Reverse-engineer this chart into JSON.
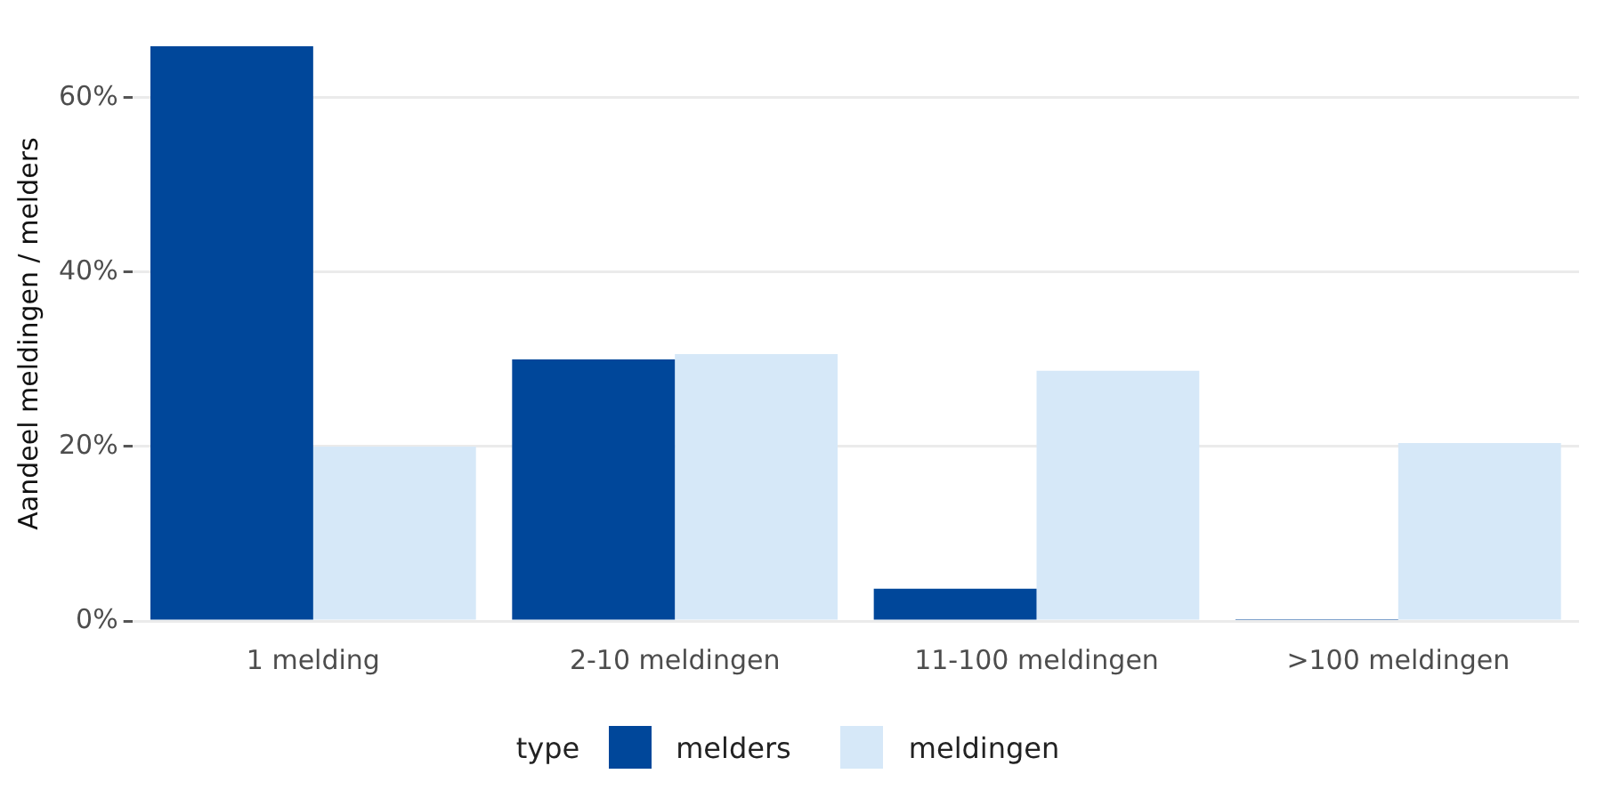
{
  "chart_data": {
    "type": "bar",
    "ylabel": "Aandeel meldingen / melders",
    "legend_title": "type",
    "categories": [
      "1 melding",
      "2-10 meldingen",
      "11-100 meldingen",
      ">100 meldingen"
    ],
    "series": [
      {
        "name": "melders",
        "color": "#00479a",
        "values": [
          65.9,
          30.0,
          3.7,
          0.2
        ]
      },
      {
        "name": "meldingen",
        "color": "#d6e8f8",
        "values": [
          20.0,
          30.6,
          28.7,
          20.4
        ]
      }
    ],
    "yticks": [
      {
        "value": 0,
        "label": "0%"
      },
      {
        "value": 20,
        "label": "20%"
      },
      {
        "value": 40,
        "label": "40%"
      },
      {
        "value": 60,
        "label": "60%"
      }
    ],
    "ylim": [
      0,
      65.9
    ],
    "grid": "y",
    "legend": "bottom"
  }
}
